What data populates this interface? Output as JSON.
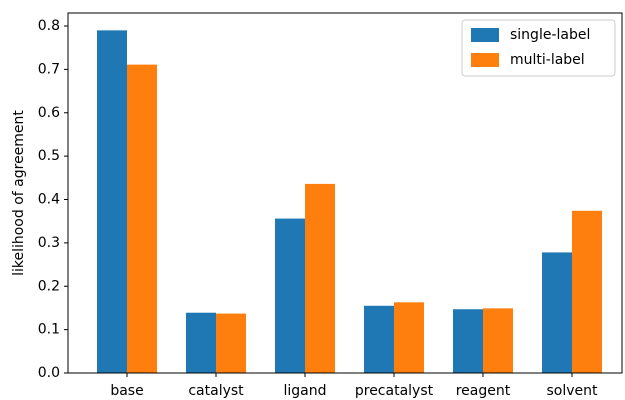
{
  "chart_data": {
    "type": "bar",
    "y_label": "likelihood of agreement",
    "categories": [
      "base",
      "catalyst",
      "ligand",
      "precatalyst",
      "reagent",
      "solvent"
    ],
    "series": [
      {
        "name": "single-label",
        "color": "#1f77b4",
        "values": [
          0.79,
          0.139,
          0.356,
          0.155,
          0.147,
          0.278
        ]
      },
      {
        "name": "multi-label",
        "color": "#ff7f0e",
        "values": [
          0.711,
          0.137,
          0.436,
          0.163,
          0.149,
          0.374
        ]
      }
    ],
    "ylim": [
      0,
      0.83
    ],
    "yticks": [
      {
        "value": 0,
        "label": "0.0"
      },
      0.1,
      0.2,
      0.3,
      0.4,
      0.5,
      0.6,
      0.7,
      0.8
    ],
    "legend": "upper right"
  }
}
